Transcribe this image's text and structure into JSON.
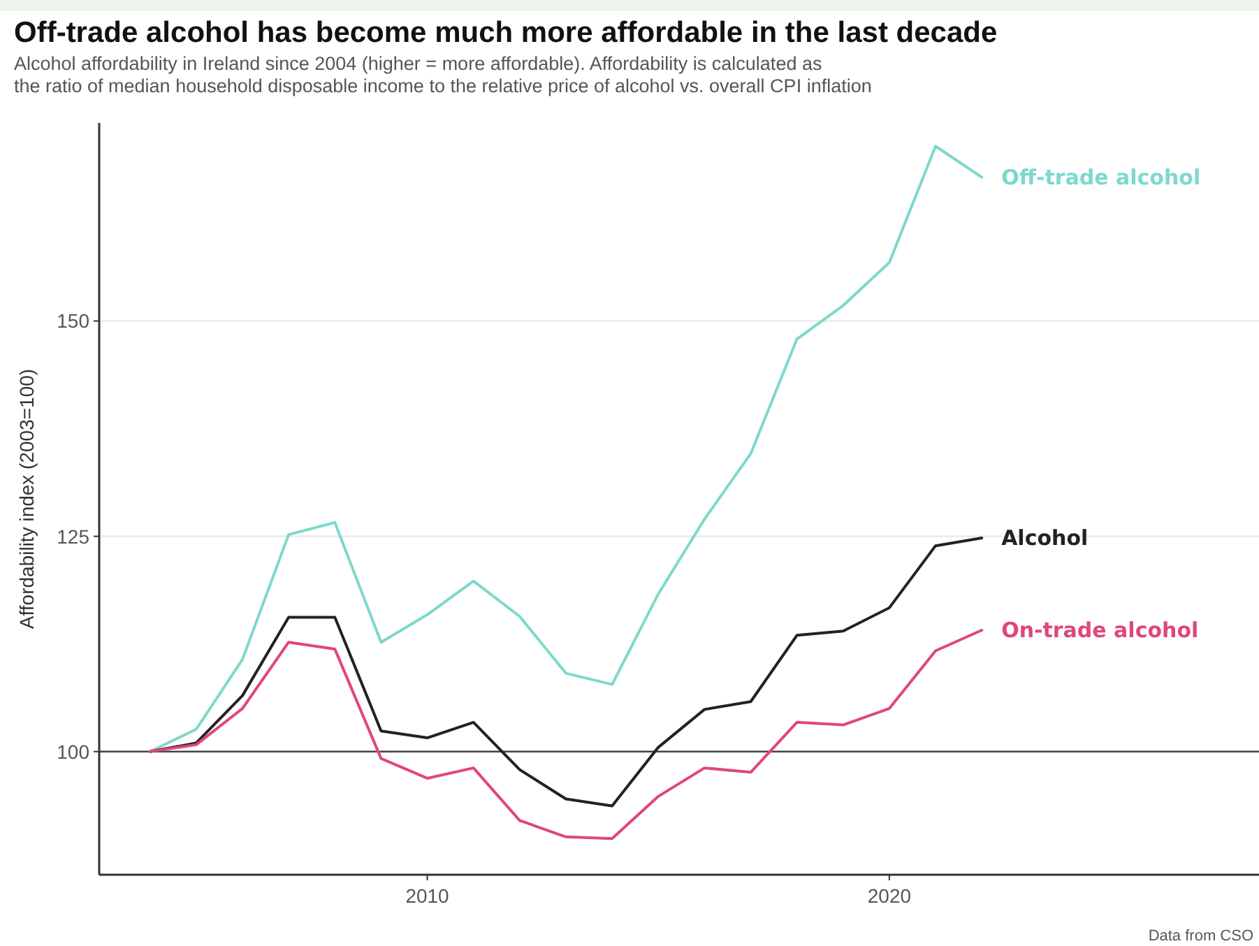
{
  "chart_data": {
    "type": "line",
    "title": "Off-trade alcohol has become much more affordable in the last decade",
    "subtitle": "Alcohol affordability in Ireland since 2004 (higher = more affordable). Affordability is calculated as\nthe ratio of median household disposable income to the relative price of alcohol vs. overall CPI inflation",
    "ylabel": "Affordability index (2003=100)",
    "annotations": [
      "Data from CSO"
    ],
    "x": [
      2004,
      2005,
      2006,
      2007,
      2008,
      2009,
      2010,
      2011,
      2012,
      2013,
      2014,
      2015,
      2016,
      2017,
      2018,
      2019,
      2020,
      2021,
      2022
    ],
    "series": [
      {
        "name": "Off-trade alcohol",
        "color": "#7dd9cb",
        "values": [
          100,
          102.6,
          110.7,
          125.2,
          126.6,
          112.7,
          115.9,
          119.8,
          115.7,
          109.1,
          107.8,
          118.3,
          127,
          134.6,
          147.9,
          151.8,
          156.8,
          170.3,
          166.7
        ]
      },
      {
        "name": "Alcohol",
        "color": "#222222",
        "values": [
          100,
          101,
          106.5,
          115.6,
          115.6,
          102.4,
          101.6,
          103.4,
          97.9,
          94.5,
          93.7,
          100.5,
          104.9,
          105.8,
          113.5,
          114,
          116.7,
          123.9,
          124.8
        ]
      },
      {
        "name": "On-trade alcohol",
        "color": "#e0467c",
        "values": [
          100,
          100.8,
          105,
          112.7,
          111.9,
          99.2,
          96.9,
          98.1,
          92,
          90.1,
          89.9,
          94.8,
          98.1,
          97.6,
          103.4,
          103.1,
          105,
          111.7,
          114.1
        ]
      }
    ],
    "xlim": [
      2002.9,
      2028
    ],
    "ylim": [
      85.7,
      173
    ],
    "xticks": [
      2010,
      2020
    ],
    "yticks": [
      100,
      125,
      150
    ],
    "ref_lines": [
      {
        "axis": "y",
        "value": 100,
        "color": "#444444"
      }
    ],
    "grid": "y",
    "legend": false,
    "line_style": "solid",
    "marker": "none"
  }
}
